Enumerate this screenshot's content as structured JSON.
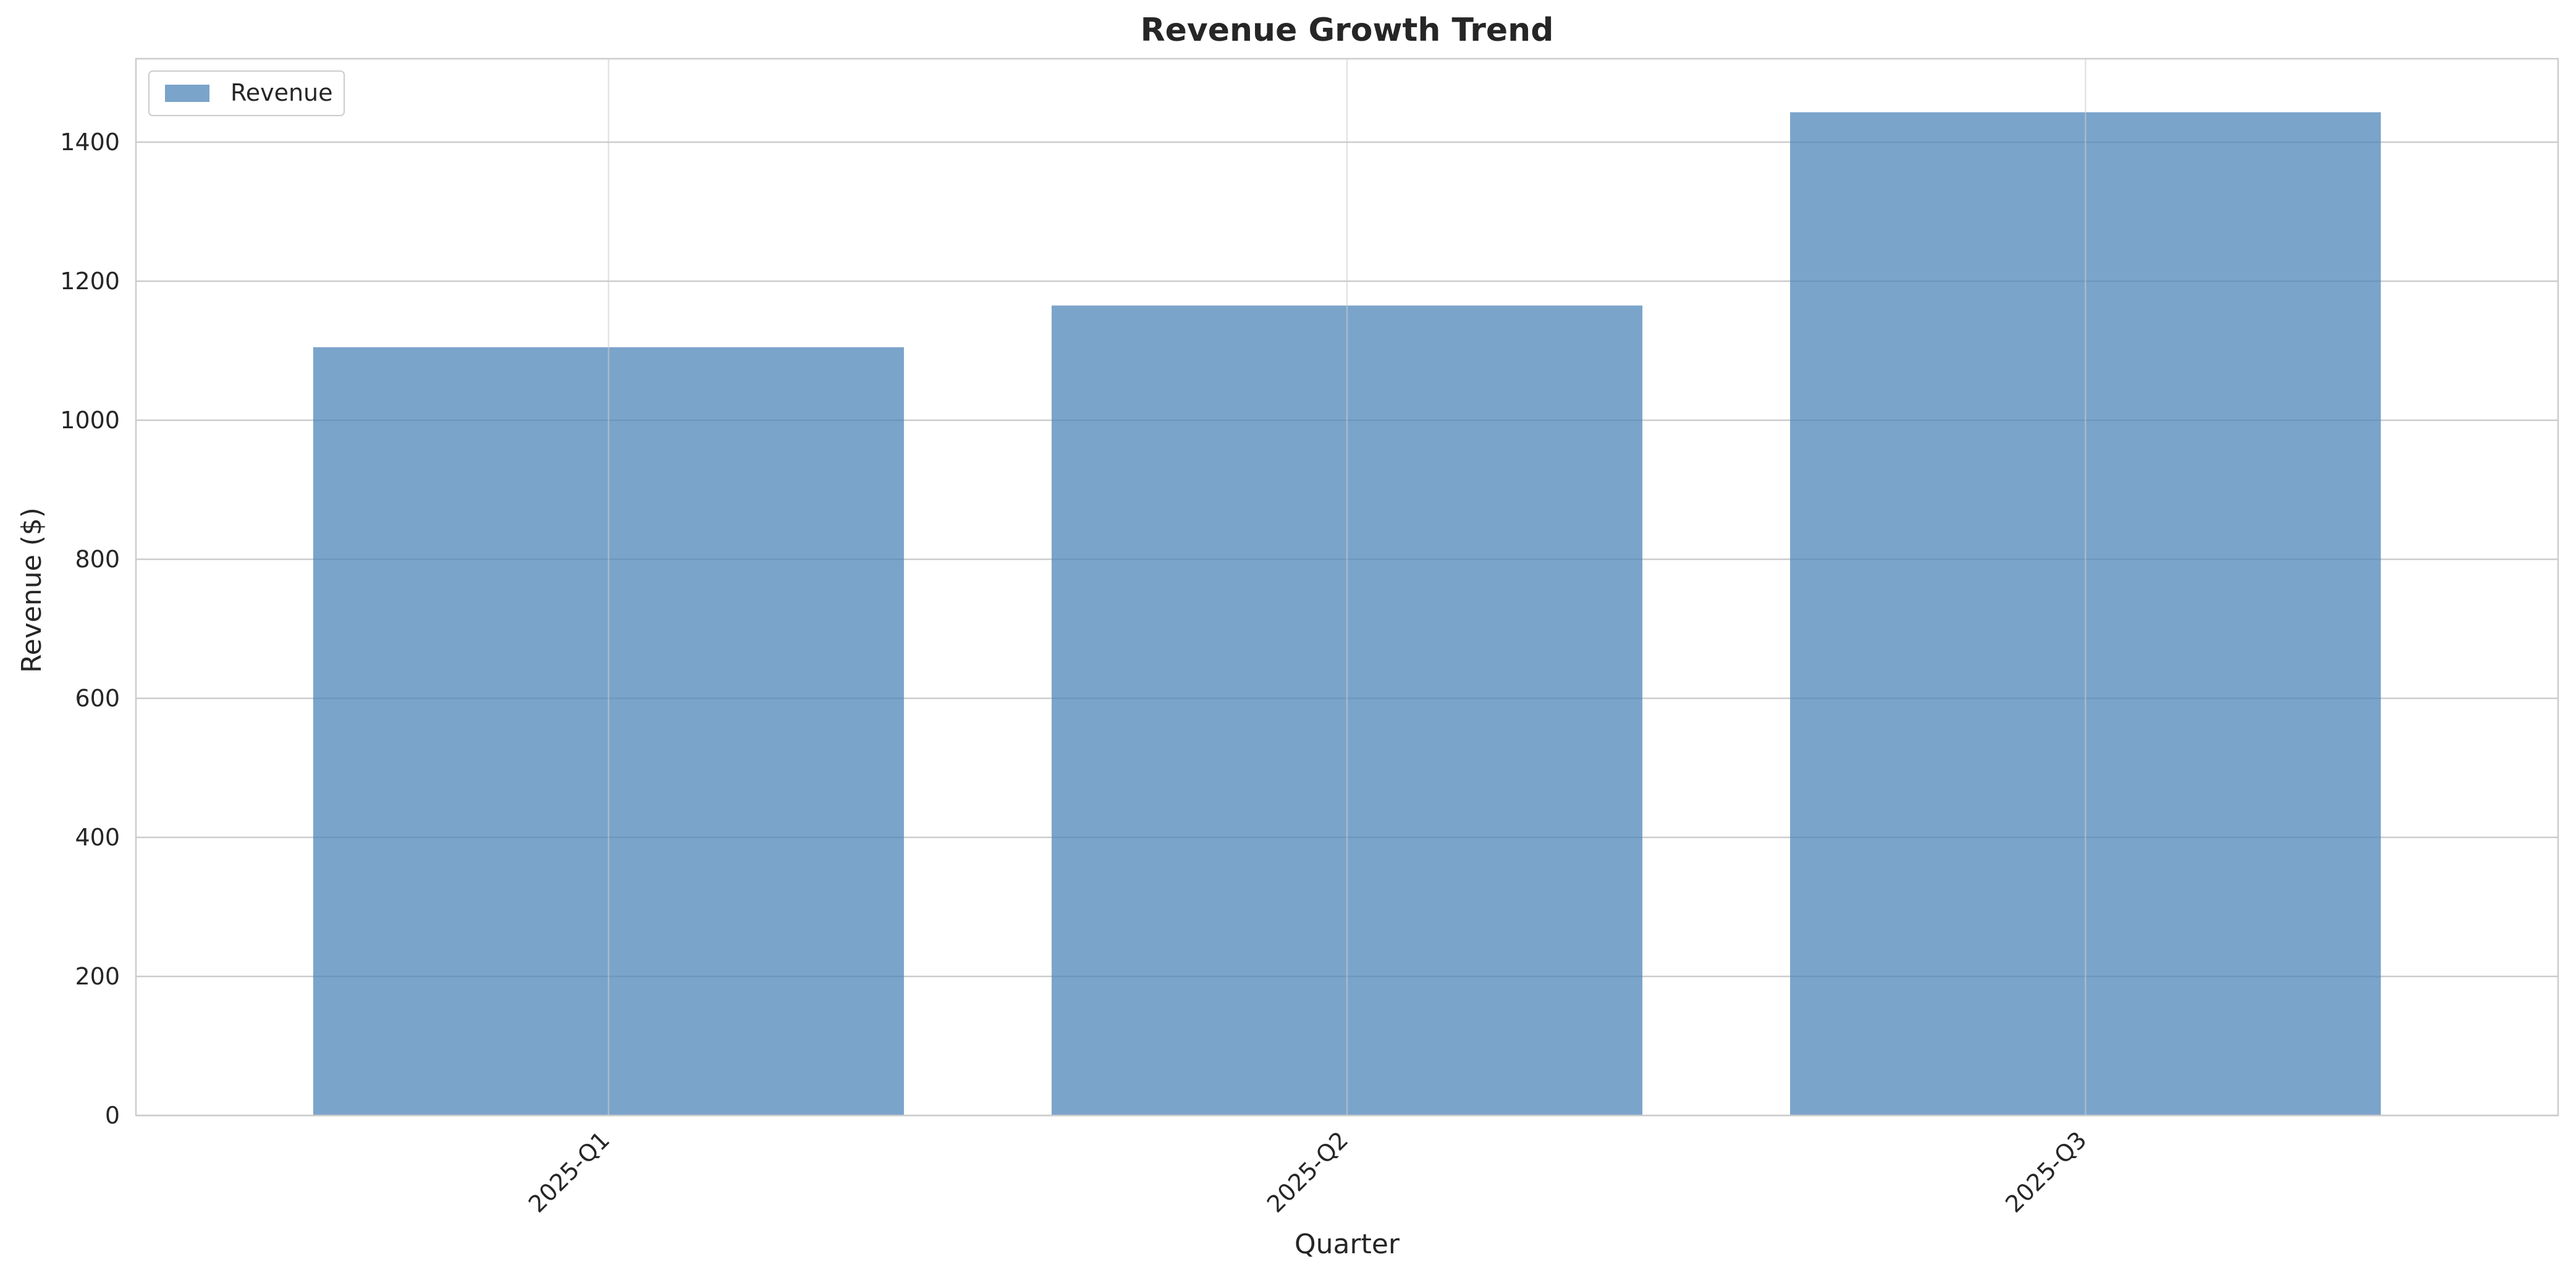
{
  "colors": {
    "background": "#ffffff",
    "bar": "#4f86b9",
    "grid": "#cccccc",
    "axes": "#cccccc",
    "text": "#262626"
  },
  "chart_data": {
    "type": "bar",
    "title": "Revenue Growth Trend",
    "xlabel": "Quarter",
    "ylabel": "Revenue ($)",
    "categories": [
      "2025-Q1",
      "2025-Q2",
      "2025-Q3"
    ],
    "series": [
      {
        "name": "Revenue",
        "values": [
          1105,
          1165,
          1443
        ]
      }
    ],
    "ylim": [
      0,
      1520
    ],
    "yticks": [
      0,
      200,
      400,
      600,
      800,
      1000,
      1200,
      1400
    ],
    "grid": true,
    "legend": "top-left",
    "xtick_rotation": -45
  }
}
